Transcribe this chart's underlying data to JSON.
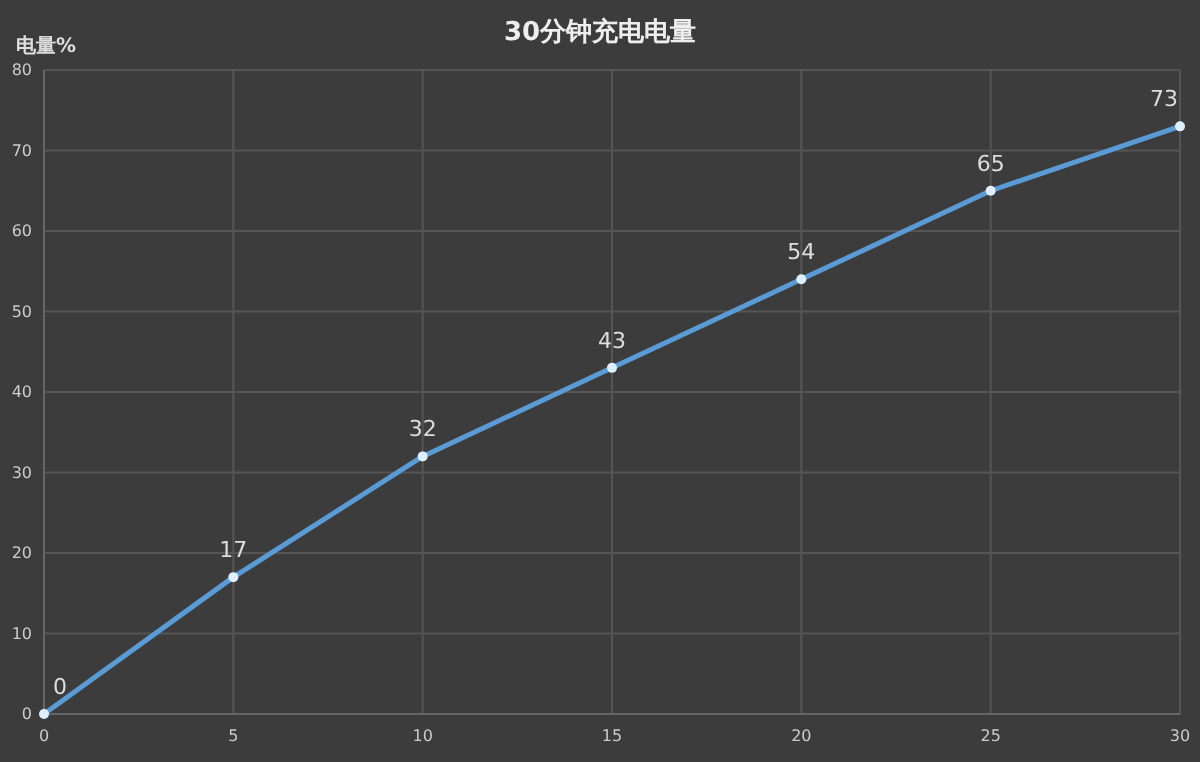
{
  "chart_data": {
    "type": "line",
    "title": "30分钟充电电量",
    "ylabel": "电量%",
    "x": [
      0,
      5,
      10,
      15,
      20,
      25,
      30
    ],
    "series": [
      {
        "color": "#5b9bd5",
        "values": [
          0,
          17,
          32,
          43,
          54,
          65,
          73
        ]
      }
    ],
    "xlim": [
      0,
      30
    ],
    "xticks": [
      0,
      5,
      10,
      15,
      20,
      25,
      30
    ],
    "ylim": [
      0,
      80
    ],
    "yticks": [
      0,
      10,
      20,
      30,
      40,
      50,
      60,
      70,
      80
    ],
    "grid": true,
    "data_labels": true,
    "marker": "circle",
    "line_style": "solid"
  }
}
